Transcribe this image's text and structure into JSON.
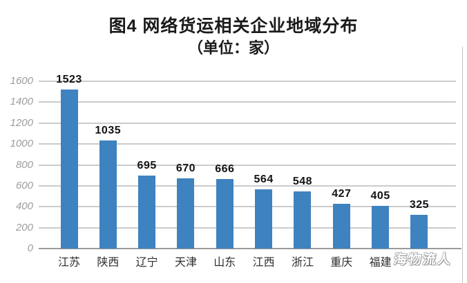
{
  "page": {
    "background": "#ffffff"
  },
  "chart_data": {
    "type": "bar",
    "title": "图4 网络货运相关企业地域分布",
    "subtitle": "（单位：家）",
    "categories": [
      "江苏",
      "陕西",
      "辽宁",
      "天津",
      "山东",
      "江西",
      "浙江",
      "重庆",
      "福建",
      ""
    ],
    "values": [
      1523,
      1035,
      695,
      670,
      666,
      564,
      548,
      427,
      405,
      325
    ],
    "xlabel": "",
    "ylabel": "",
    "ylim": [
      0,
      1600
    ],
    "yticks": [
      0,
      200,
      400,
      600,
      800,
      1000,
      1200,
      1400,
      1600
    ],
    "grid": true,
    "legend_position": "none",
    "bar_color": "#3e82c0",
    "gridline_color": "#cbcbcb",
    "axis_line_color": "#9a9a9a",
    "ytick_label_color": "#9c9c9c",
    "value_label_color": "#121212",
    "category_label_color": "#2e2e2e"
  },
  "watermark": {
    "text": "海物流人"
  }
}
